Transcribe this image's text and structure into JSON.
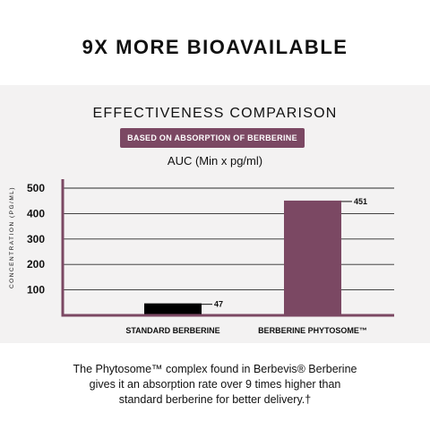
{
  "headline": "9X MORE BIOAVAILABLE",
  "chart_data": {
    "type": "bar",
    "title": "EFFECTIVENESS COMPARISON",
    "subtitle_badge": "BASED ON ABSORPTION OF BERBERINE",
    "metric_label": "AUC (Min x pg/ml)",
    "ylabel": "CONCENTRATION (PG/ML)",
    "xlabel": "",
    "categories": [
      "STANDARD BERBERINE",
      "BERBERINE PHYTOSOME™"
    ],
    "values": [
      47,
      451
    ],
    "value_labels": [
      "47",
      "451"
    ],
    "yticks": [
      100,
      200,
      300,
      400,
      500
    ],
    "ylim": [
      0,
      500
    ],
    "grid": true,
    "bar_colors": [
      "#000000",
      "#7b4863"
    ]
  },
  "footer": {
    "line1": "The Phytosome™ complex found in Berbevis® Berberine",
    "line2": "gives it an absorption rate over 9 times higher than",
    "line3": "standard berberine for better delivery.†"
  },
  "colors": {
    "accent": "#7b4863",
    "panel_bg": "#f3f2f2"
  }
}
